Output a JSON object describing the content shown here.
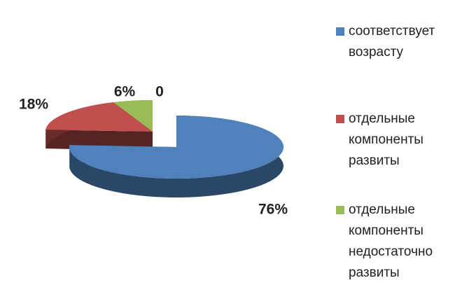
{
  "chart_data": {
    "type": "pie",
    "categories": [
      "соответствует возрасту",
      "отдельные компоненты развиты",
      "отдельные компоненты недостаточно развиты",
      null
    ],
    "values": [
      76,
      18,
      6,
      0
    ],
    "value_labels": [
      "76%",
      "18%",
      "6%",
      "0"
    ],
    "colors": [
      "#4f81bd",
      "#c0504d",
      "#9bbb59",
      "#8064a2"
    ],
    "legend": "right"
  }
}
